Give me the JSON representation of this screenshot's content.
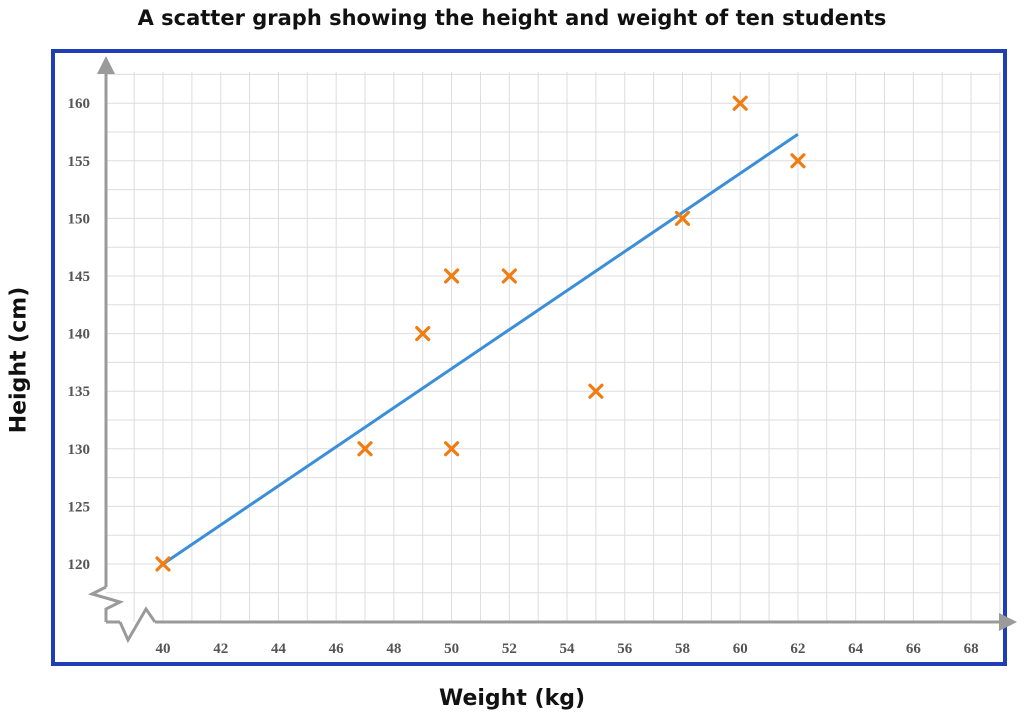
{
  "chart_data": {
    "type": "scatter",
    "title": "A scatter graph showing the height and weight of ten students",
    "xlabel": "Weight (kg)",
    "ylabel": "Height (cm)",
    "xlim": [
      40,
      68
    ],
    "ylim": [
      120,
      160
    ],
    "x_ticks": [
      40,
      42,
      44,
      46,
      48,
      50,
      52,
      54,
      56,
      58,
      60,
      62,
      64,
      66,
      68
    ],
    "y_ticks": [
      120,
      125,
      130,
      135,
      140,
      145,
      150,
      155,
      160
    ],
    "axis_breaks": [
      "x",
      "y"
    ],
    "grid": true,
    "marker": "x",
    "series": [
      {
        "x": [
          40,
          47,
          49,
          50,
          50,
          52,
          55,
          58,
          60,
          62
        ],
        "y": [
          120,
          130,
          140,
          145,
          130,
          145,
          135,
          150,
          160,
          155
        ]
      }
    ],
    "line_of_best_fit": {
      "x": [
        40,
        62
      ],
      "y": [
        120,
        157.3
      ]
    },
    "colors": {
      "points": "#f07d12",
      "fit_line": "#3b8ed8",
      "frame": "#1f3db5",
      "axis": "#9a9a9a",
      "grid": "#dddddd"
    }
  }
}
